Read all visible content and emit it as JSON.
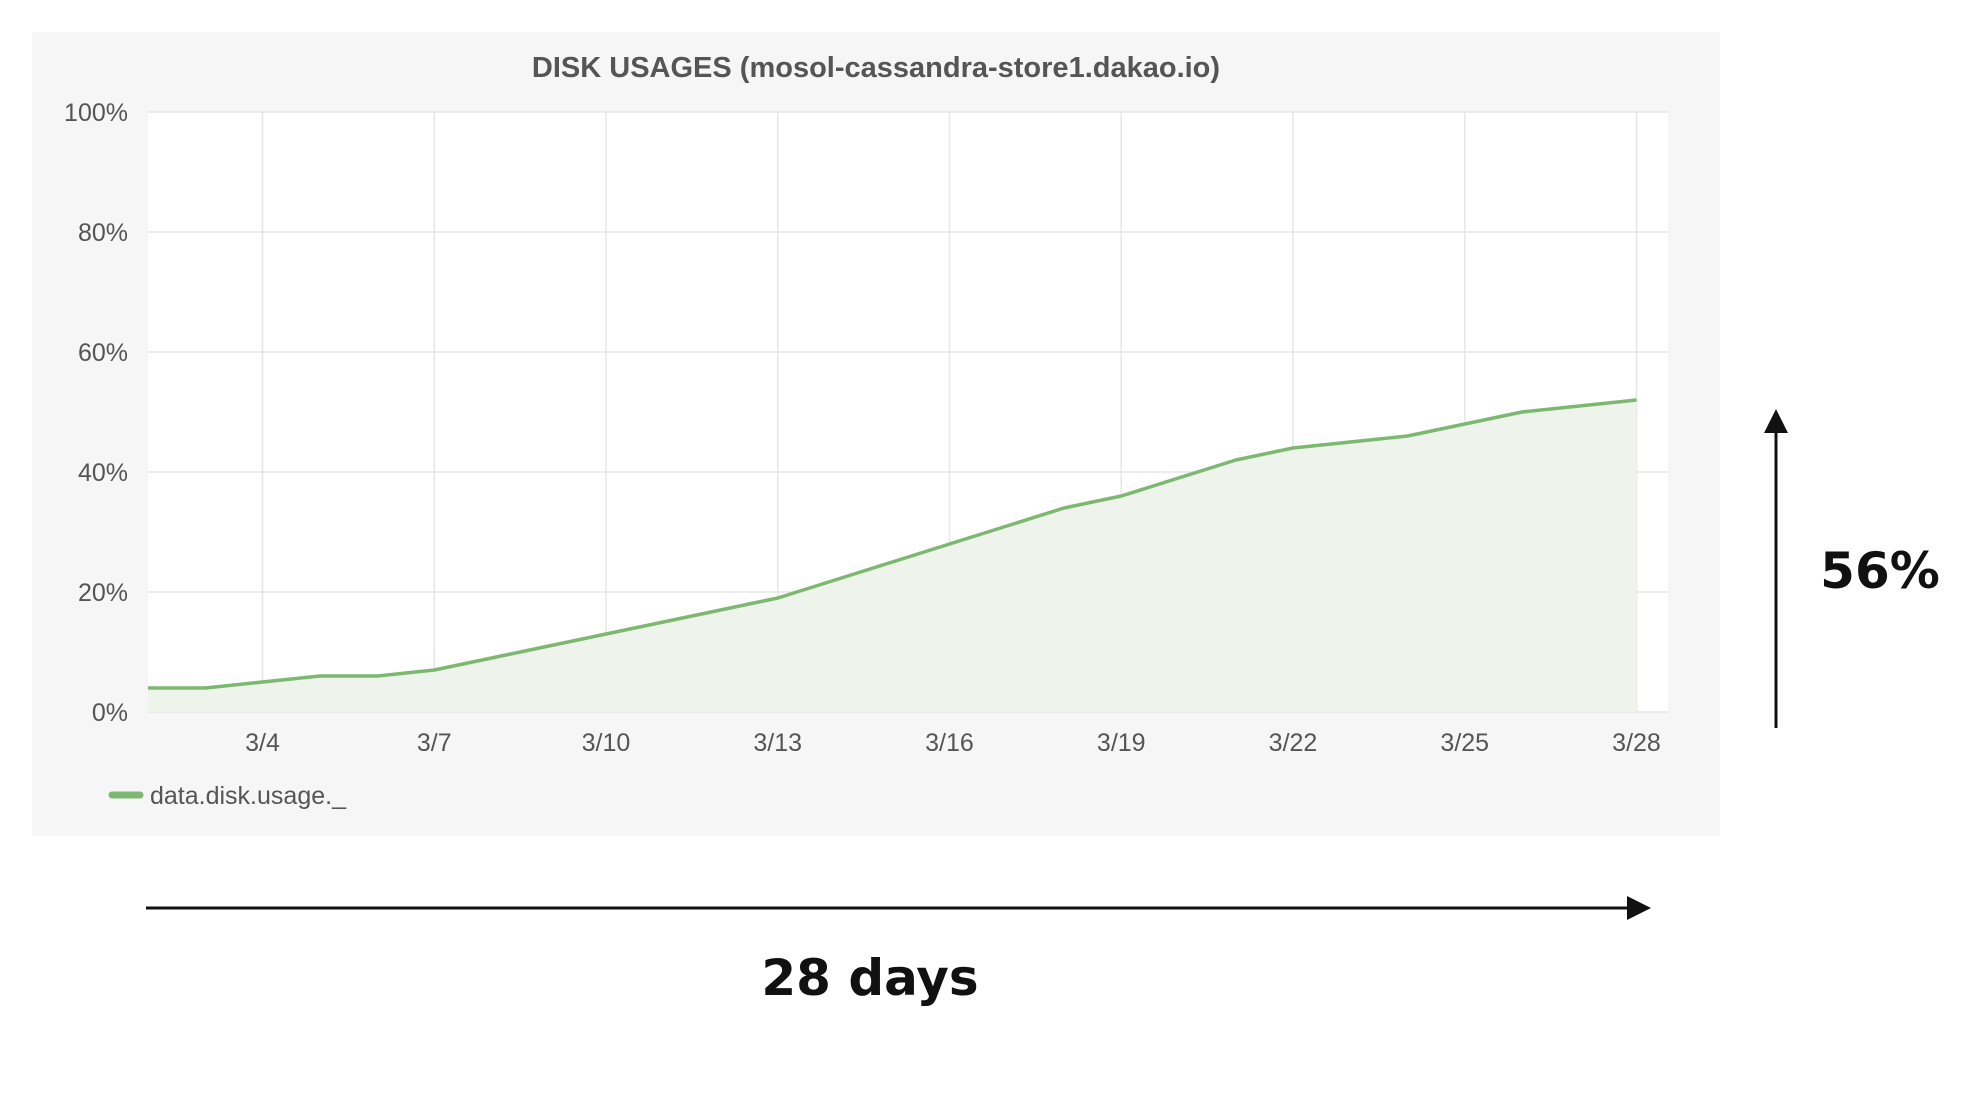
{
  "colors": {
    "panel_background": "#f6f6f6",
    "plot_background": "#ffffff",
    "grid": "#e6e6e6",
    "series_line": "#7cb86f",
    "series_fill": "#eef3ec",
    "text": "#555555",
    "annotation": "#111111"
  },
  "chart_data": {
    "type": "area",
    "title": "DISK USAGES (mosol-cassandra-store1.dakao.io)",
    "xlabel": "",
    "ylabel": "",
    "x_ticks": [
      "3/4",
      "3/7",
      "3/10",
      "3/13",
      "3/16",
      "3/19",
      "3/22",
      "3/25",
      "3/28"
    ],
    "y_ticks": [
      "100%",
      "80%",
      "60%",
      "40%",
      "20%",
      "0%"
    ],
    "xlim": [
      "3/2",
      "3/28"
    ],
    "ylim": [
      0,
      100
    ],
    "grid": true,
    "legend_position": "bottom-left",
    "series": [
      {
        "name": "data.disk.usage._",
        "x": [
          "3/2",
          "3/3",
          "3/4",
          "3/5",
          "3/6",
          "3/7",
          "3/8",
          "3/9",
          "3/10",
          "3/11",
          "3/12",
          "3/13",
          "3/14",
          "3/15",
          "3/16",
          "3/17",
          "3/18",
          "3/19",
          "3/20",
          "3/21",
          "3/22",
          "3/23",
          "3/24",
          "3/25",
          "3/26",
          "3/27",
          "3/28"
        ],
        "values": [
          4,
          4,
          5,
          6,
          6,
          7,
          9,
          11,
          13,
          15,
          17,
          19,
          22,
          25,
          28,
          31,
          34,
          36,
          39,
          42,
          44,
          45,
          46,
          48,
          50,
          51,
          52
        ]
      }
    ]
  },
  "annotations": {
    "horizontal_label": "28 days",
    "vertical_label": "56%"
  }
}
